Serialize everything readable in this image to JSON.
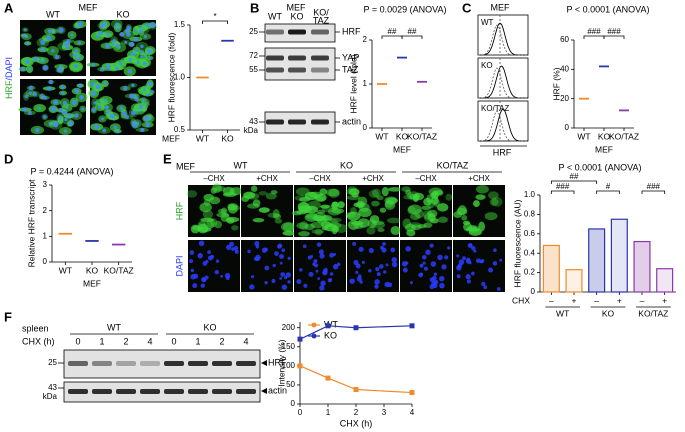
{
  "figure": {
    "letters": [
      "A",
      "B",
      "C",
      "D",
      "E",
      "F"
    ],
    "A": {
      "header": "MEF",
      "cols": [
        "WT",
        "KO"
      ],
      "stain": [
        "HRF",
        "/DAPI"
      ]
    },
    "B": {
      "header": "MEF",
      "lanes": [
        "WT",
        "KO",
        "KO/",
        "TAZ"
      ],
      "bands": [
        "HRF",
        "YAP",
        "TAZ",
        "actin"
      ],
      "markers": [
        "25",
        "72",
        "55",
        "43"
      ],
      "unit": "kDa"
    },
    "C": {
      "header": "MEF",
      "rows": [
        "WT",
        "KO",
        "KO/TAZ"
      ],
      "axis": "HRF"
    },
    "E": {
      "header": "MEF",
      "groups": [
        "WT",
        "KO",
        "KO/TAZ"
      ],
      "conditions": [
        "–CHX",
        "+CHX"
      ],
      "stains": [
        "HRF",
        "DAPI"
      ]
    },
    "F": {
      "tissue": "spleen",
      "time_label": "CHX (h)",
      "groups": [
        "WT",
        "KO"
      ],
      "times": [
        "0",
        "1",
        "2",
        "4"
      ],
      "bands": [
        "HRF",
        "actin"
      ],
      "markers": [
        "25",
        "43"
      ],
      "unit": "kDa"
    }
  },
  "chart_data": [
    {
      "type": "dot",
      "ylabel": "HRF fluorescence (fold)",
      "xlabel": "MEF",
      "categories": [
        "WT",
        "KO"
      ],
      "values": [
        1.0,
        1.35
      ],
      "colors": [
        "#f08a2c",
        "#2b35b0"
      ],
      "ylim": [
        0.5,
        1.5
      ],
      "yticks": [
        0.5,
        {
          "value": 1,
          "label": "1.0"
        },
        1.5
      ],
      "annotations": [
        "*"
      ]
    },
    {
      "type": "dot",
      "title": "P = 0.0029 (ANOVA)",
      "ylabel": "HRF level (fold)",
      "xlabel": "MEF",
      "categories": [
        "WT",
        "KO",
        "KO/TAZ"
      ],
      "values": [
        1.0,
        1.6,
        1.05
      ],
      "colors": [
        "#f08a2c",
        "#2b35b0",
        "#8a3aa8"
      ],
      "ylim": [
        0,
        2
      ],
      "yticks": [
        0,
        1,
        2
      ],
      "annotations": [
        "##",
        "##"
      ]
    },
    {
      "type": "dot",
      "title": "P < 0.0001 (ANOVA)",
      "ylabel": "HRF (%)",
      "xlabel": "MEF",
      "categories": [
        "WT",
        "KO",
        "KO/TAZ"
      ],
      "values": [
        20,
        42,
        12
      ],
      "colors": [
        "#f08a2c",
        "#2b35b0",
        "#8a3aa8"
      ],
      "ylim": [
        0,
        60
      ],
      "yticks": [
        0,
        20,
        40,
        60
      ],
      "annotations": [
        "###",
        "###"
      ]
    },
    {
      "type": "dot",
      "title": "P = 0.4244 (ANOVA)",
      "ylabel": "Relative HRF transcript",
      "xlabel": "MEF",
      "categories": [
        "WT",
        "KO",
        "KO/TAZ"
      ],
      "values": [
        1.1,
        0.82,
        0.68
      ],
      "colors": [
        "#f08a2c",
        "#2b35b0",
        "#8a3aa8"
      ],
      "ylim": [
        0,
        3
      ],
      "yticks": [
        0,
        1,
        2,
        3
      ]
    },
    {
      "type": "bar",
      "title": "P < 0.0001 (ANOVA)",
      "ylabel": "HRF fluorescence (AU)",
      "xlabel": "CHX",
      "categories": [
        "–",
        "+",
        "–",
        "+",
        "–",
        "+"
      ],
      "groups": [
        "WT",
        "KO",
        "KO/TAZ"
      ],
      "values": [
        0.48,
        0.23,
        0.65,
        0.75,
        0.52,
        0.24
      ],
      "colors": [
        "#f08a2c",
        "#f08a2c",
        "#2b35b0",
        "#2b35b0",
        "#8a3aa8",
        "#8a3aa8"
      ],
      "ylim": [
        0,
        1
      ],
      "yticks": [
        0,
        0.2,
        0.4,
        0.6,
        0.8,
        {
          "value": 1,
          "label": "1.0"
        }
      ],
      "annotations": [
        "###",
        "##",
        "#",
        "###"
      ]
    },
    {
      "type": "line",
      "ylabel": "Intensity (%)",
      "xlabel": "CHX (h)",
      "x": [
        0,
        1,
        2,
        4
      ],
      "series": [
        {
          "name": "WT",
          "color": "#f08a2c",
          "values": [
            100,
            68,
            38,
            30
          ]
        },
        {
          "name": "KO",
          "color": "#2b35b0",
          "values": [
            170,
            205,
            200,
            205
          ]
        }
      ],
      "xlim": [
        0,
        4
      ],
      "ylim": [
        0,
        215
      ],
      "xticks": [
        0,
        1,
        2,
        3,
        4
      ],
      "yticks": [
        0,
        50,
        100,
        150,
        200
      ]
    }
  ]
}
